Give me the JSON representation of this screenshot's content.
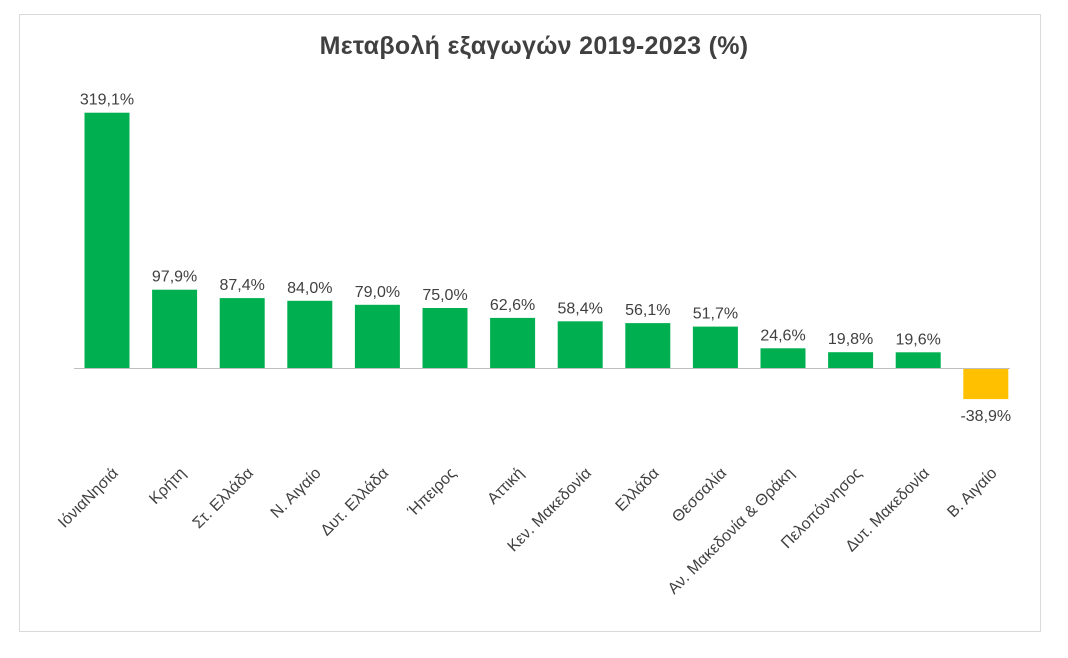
{
  "chart_data": {
    "type": "bar",
    "title": "Μεταβολή εξαγωγών 2019-2023 (%)",
    "xlabel": "",
    "ylabel": "",
    "ylim": [
      -50,
      330
    ],
    "categories": [
      "ΙόνιαΝησιά",
      "Κρήτη",
      "Στ. Ελλάδα",
      "Ν. Αιγαίο",
      "Δυτ. Ελλάδα",
      "Ήπειρος",
      "Αττική",
      "Κεν. Μακεδονία",
      "Ελλάδα",
      "Θεσσαλία",
      "Αν. Μακεδονία & Θράκη",
      "Πελοπόννησος",
      "Δυτ. Μακεδονία",
      "Β. Αιγαίο"
    ],
    "values": [
      319.1,
      97.9,
      87.4,
      84.0,
      79.0,
      75.0,
      62.6,
      58.4,
      56.1,
      51.7,
      24.6,
      19.8,
      19.6,
      -38.9
    ],
    "labels": [
      "319,1%",
      "97,9%",
      "87,4%",
      "84,0%",
      "79,0%",
      "75,0%",
      "62,6%",
      "58,4%",
      "56,1%",
      "51,7%",
      "24,6%",
      "19,8%",
      "19,6%",
      "-38,9%"
    ],
    "colors": {
      "positive": "#00b050",
      "negative": "#ffc000",
      "axis": "#bfbfbf",
      "text": "#404040"
    },
    "grid": false,
    "legend": "none"
  }
}
